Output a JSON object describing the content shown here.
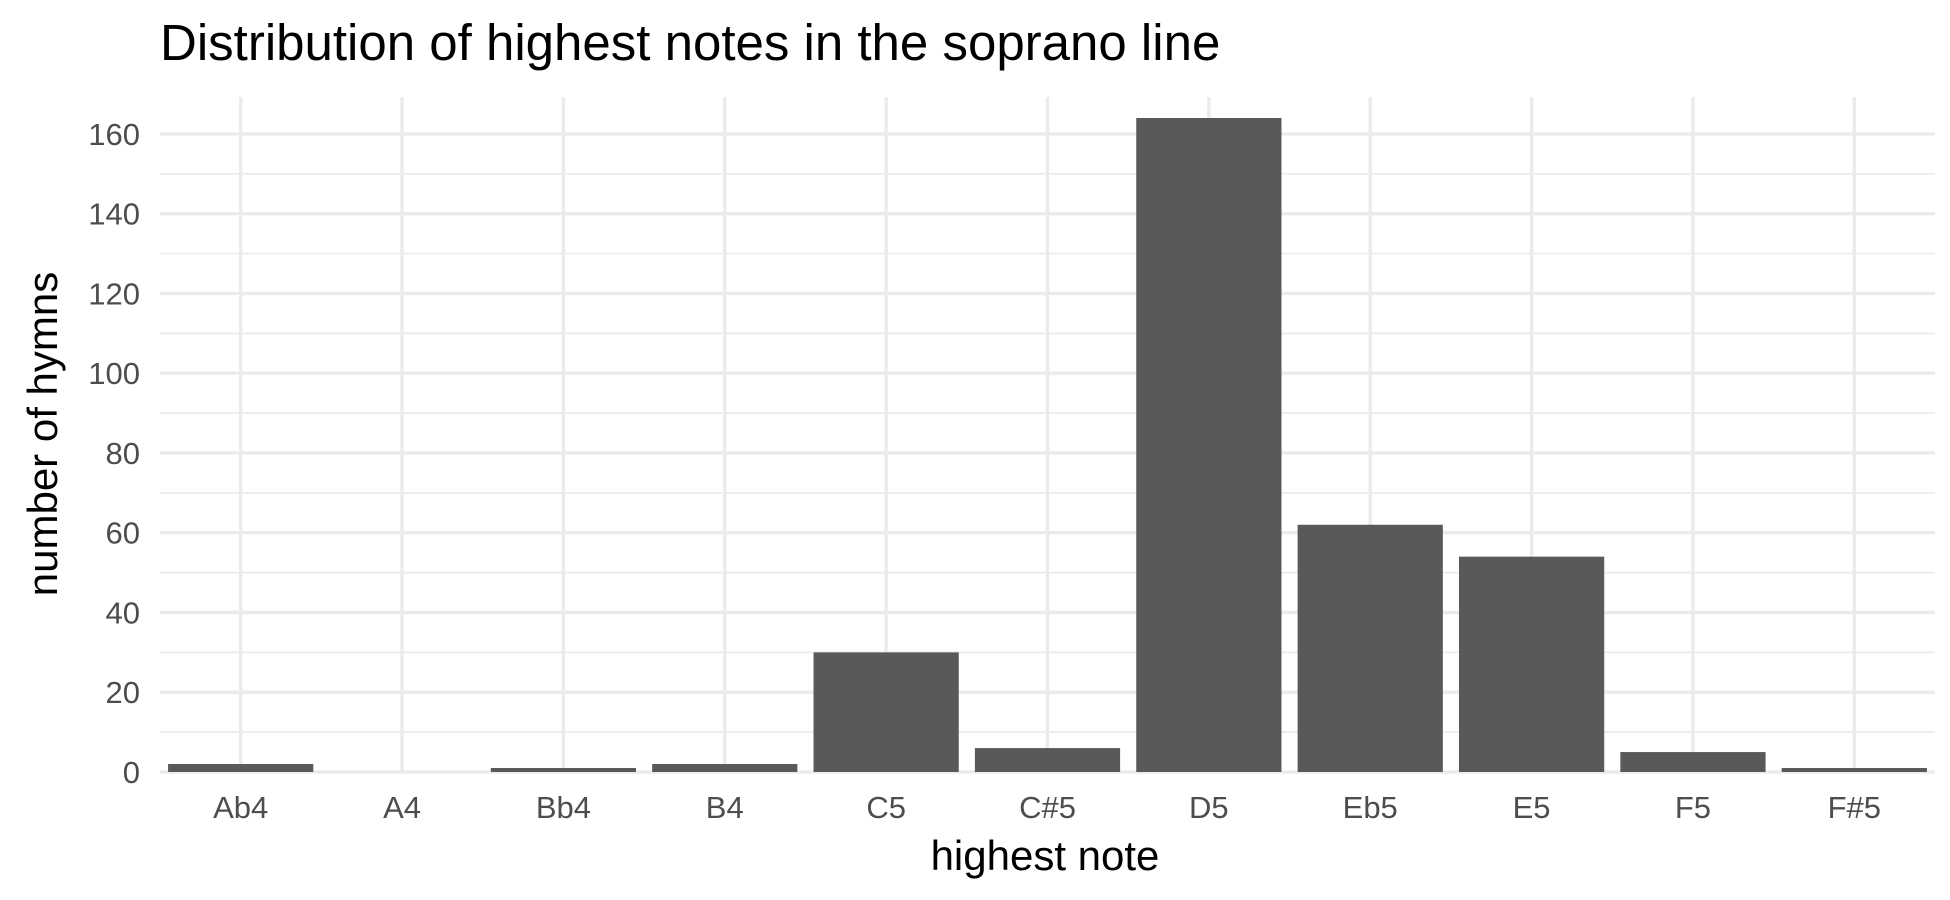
{
  "chart_data": {
    "type": "bar",
    "title": "Distribution of highest notes in the soprano line",
    "xlabel": "highest note",
    "ylabel": "number of hymns",
    "categories": [
      "Ab4",
      "A4",
      "Bb4",
      "B4",
      "C5",
      "C#5",
      "D5",
      "Eb5",
      "E5",
      "F5",
      "F#5"
    ],
    "values": [
      2,
      0,
      1,
      2,
      30,
      6,
      164,
      62,
      54,
      5,
      1
    ],
    "yticks": [
      0,
      20,
      40,
      60,
      80,
      100,
      120,
      140,
      160
    ],
    "ylim": [
      0,
      169
    ],
    "grid": true,
    "bar_color": "#595959",
    "grid_color": "#ebebeb",
    "tick_label_color": "#4d4d4d"
  }
}
